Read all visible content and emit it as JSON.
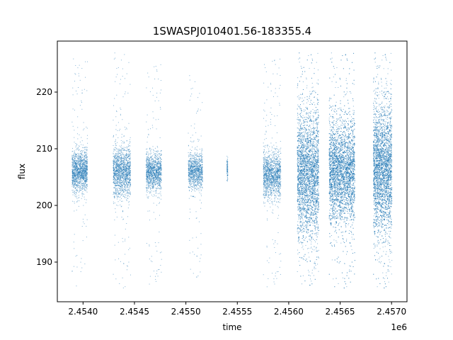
{
  "chart_data": {
    "type": "scatter",
    "title": "1SWASPJ010401.56-183355.4",
    "xlabel": "time",
    "ylabel": "flux",
    "x_offset_label": "1e6",
    "xlim": [
      2453750,
      2457150
    ],
    "ylim": [
      183,
      229
    ],
    "grid": false,
    "legend": "none",
    "marker_color": "#1f77b4",
    "x_ticks": [
      {
        "value": 2454000,
        "label": "2.4540"
      },
      {
        "value": 2454500,
        "label": "2.4545"
      },
      {
        "value": 2455000,
        "label": "2.4550"
      },
      {
        "value": 2455500,
        "label": "2.4555"
      },
      {
        "value": 2456000,
        "label": "2.4560"
      },
      {
        "value": 2456500,
        "label": "2.4565"
      },
      {
        "value": 2457000,
        "label": "2.4570"
      }
    ],
    "y_ticks": [
      {
        "value": 190,
        "label": "190"
      },
      {
        "value": 200,
        "label": "200"
      },
      {
        "value": 210,
        "label": "210"
      },
      {
        "value": 220,
        "label": "220"
      }
    ],
    "series": [
      {
        "segments": [
          {
            "x_start": 2453890,
            "x_end": 2454040,
            "median": 206.0,
            "core_spread": 1.8,
            "min": 185,
            "max": 226,
            "n": 1400
          },
          {
            "x_start": 2454290,
            "x_end": 2454460,
            "median": 206.0,
            "core_spread": 2.2,
            "min": 185,
            "max": 227,
            "n": 1500
          },
          {
            "x_start": 2454610,
            "x_end": 2454760,
            "median": 206.0,
            "core_spread": 1.6,
            "min": 185.5,
            "max": 225,
            "n": 1200
          },
          {
            "x_start": 2455020,
            "x_end": 2455160,
            "median": 206.0,
            "core_spread": 1.6,
            "min": 187,
            "max": 223,
            "n": 1000
          },
          {
            "x_start": 2455395,
            "x_end": 2455405,
            "median": 206.5,
            "core_spread": 1.0,
            "min": 204,
            "max": 210,
            "n": 80
          },
          {
            "x_start": 2455750,
            "x_end": 2455920,
            "median": 205.5,
            "core_spread": 2.0,
            "min": 185,
            "max": 226,
            "n": 1400
          },
          {
            "x_start": 2456080,
            "x_end": 2456290,
            "median": 205.5,
            "core_spread": 5.5,
            "min": 185.5,
            "max": 227,
            "n": 4000
          },
          {
            "x_start": 2456390,
            "x_end": 2456640,
            "median": 206.0,
            "core_spread": 4.5,
            "min": 185,
            "max": 227,
            "n": 4500
          },
          {
            "x_start": 2456820,
            "x_end": 2457000,
            "median": 206.5,
            "core_spread": 5.5,
            "min": 185,
            "max": 227,
            "n": 4000
          }
        ]
      }
    ]
  }
}
